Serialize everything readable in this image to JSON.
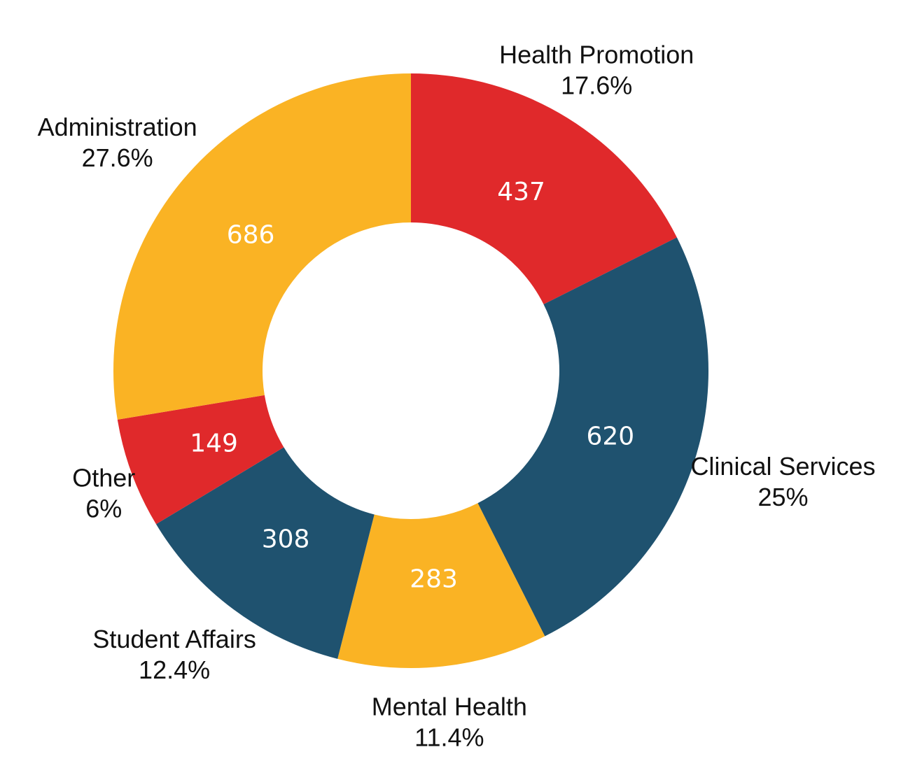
{
  "chart_data": {
    "type": "donut",
    "start_angle_deg": 0,
    "direction": "clockwise",
    "slices": [
      {
        "name": "Health Promotion",
        "value": 437,
        "percent_label": "17.6%",
        "color": "#E0292B"
      },
      {
        "name": "Clinical Services",
        "value": 620,
        "percent_label": "25%",
        "color": "#1F526F"
      },
      {
        "name": "Mental Health",
        "value": 283,
        "percent_label": "11.4%",
        "color": "#FAB324"
      },
      {
        "name": "Student Affairs",
        "value": 308,
        "percent_label": "12.4%",
        "color": "#1F526F"
      },
      {
        "name": "Other",
        "value": 149,
        "percent_label": "6%",
        "color": "#E0292B"
      },
      {
        "name": "Administration",
        "value": 686,
        "percent_label": "27.6%",
        "color": "#FAB324"
      }
    ],
    "title": "",
    "legend": "none"
  }
}
